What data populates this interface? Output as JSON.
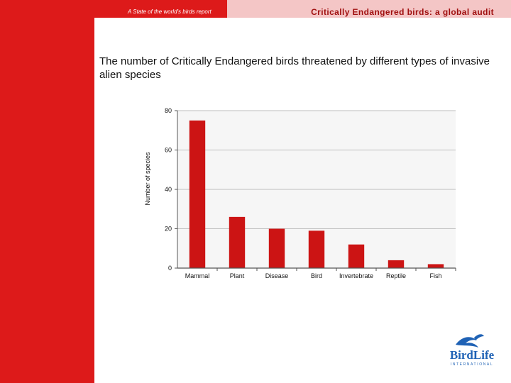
{
  "header": {
    "left_text": "A State of the world's birds report",
    "right_text": "Critically Endangered birds: a global audit"
  },
  "logo": {
    "text": "BirdLife",
    "subtext": "INTERNATIONAL"
  },
  "colors": {
    "accent_red": "#dd1a1a",
    "bar_red": "#cc1414",
    "header_pink": "#f4c6c6",
    "header_text": "#a01010"
  },
  "chart_data": {
    "type": "bar",
    "title": "The number of Critically Endangered birds threatened by different types of invasive alien species",
    "xlabel": "",
    "ylabel": "Number of species",
    "categories": [
      "Mammal",
      "Plant",
      "Disease",
      "Bird",
      "Invertebrate",
      "Reptile",
      "Fish"
    ],
    "values": [
      75,
      26,
      20,
      19,
      12,
      4,
      2
    ],
    "ylim": [
      0,
      80
    ],
    "yticks": [
      0,
      20,
      40,
      60,
      80
    ],
    "grid": true,
    "legend": "none"
  }
}
